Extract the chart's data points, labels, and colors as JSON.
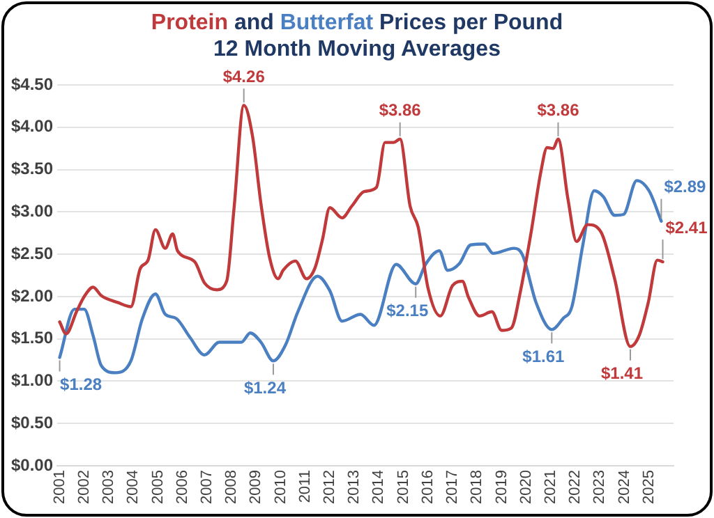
{
  "chart_data": {
    "type": "line",
    "title": "Protein and Butterfat Prices per Pound",
    "subtitle": "12 Month Moving Averages",
    "series": [
      {
        "color": "#c0393b",
        "x": [
          2001.0,
          2001.26,
          2001.7,
          2002.0,
          2002.36,
          2002.7,
          2003.36,
          2003.9,
          2004.28,
          2004.6,
          2004.9,
          2005.3,
          2005.6,
          2005.8,
          2006.5,
          2006.9,
          2007.4,
          2007.8,
          2008.1,
          2008.5,
          2008.85,
          2009.2,
          2009.55,
          2009.9,
          2010.1,
          2010.6,
          2011.05,
          2011.4,
          2011.7,
          2012.0,
          2012.5,
          2012.9,
          2013.4,
          2013.9,
          2014.25,
          2014.6,
          2014.86,
          2015.27,
          2015.6,
          2016.0,
          2016.5,
          2017.0,
          2017.4,
          2017.65,
          2018.1,
          2018.6,
          2019.0,
          2019.4,
          2019.75,
          2020.2,
          2020.6,
          2020.85,
          2021.1,
          2021.3,
          2021.7,
          2022.05,
          2022.5,
          2023.05,
          2023.6,
          2024.24,
          2024.6,
          2024.97,
          2025.34,
          2025.56
        ],
        "values": [
          1.7,
          1.56,
          1.83,
          2.0,
          2.11,
          2.01,
          1.93,
          1.88,
          2.33,
          2.43,
          2.79,
          2.57,
          2.74,
          2.54,
          2.41,
          2.16,
          2.08,
          2.18,
          3.04,
          4.26,
          3.9,
          3.09,
          2.46,
          2.21,
          2.31,
          2.42,
          2.21,
          2.34,
          2.67,
          3.05,
          2.93,
          3.07,
          3.24,
          3.29,
          3.82,
          3.82,
          3.86,
          3.07,
          2.82,
          2.1,
          1.77,
          2.13,
          2.18,
          1.99,
          1.77,
          1.82,
          1.6,
          1.63,
          2.04,
          2.76,
          3.48,
          3.76,
          3.75,
          3.86,
          3.15,
          2.65,
          2.85,
          2.76,
          2.21,
          1.41,
          1.54,
          1.93,
          2.43,
          2.41
        ]
      },
      {
        "color": "#4a7fc1",
        "x": [
          2001.0,
          2001.6,
          2002.0,
          2002.36,
          2002.7,
          2003.27,
          2003.9,
          2004.37,
          2004.9,
          2005.3,
          2005.75,
          2006.3,
          2006.9,
          2007.5,
          2008.4,
          2008.76,
          2009.2,
          2009.7,
          2010.2,
          2010.7,
          2011.5,
          2012.0,
          2012.5,
          2013.25,
          2013.8,
          2014.7,
          2015.5,
          2015.9,
          2016.46,
          2016.8,
          2017.28,
          2017.74,
          2018.3,
          2018.65,
          2019.5,
          2019.85,
          2020.4,
          2021.04,
          2021.5,
          2021.86,
          2022.3,
          2022.77,
          2023.14,
          2023.6,
          2023.96,
          2024.5,
          2025.0,
          2025.5
        ],
        "values": [
          1.28,
          1.85,
          1.85,
          1.54,
          1.18,
          1.1,
          1.24,
          1.74,
          2.03,
          1.79,
          1.74,
          1.52,
          1.31,
          1.46,
          1.46,
          1.57,
          1.46,
          1.24,
          1.43,
          1.82,
          2.24,
          2.07,
          1.71,
          1.79,
          1.66,
          2.38,
          2.15,
          2.38,
          2.54,
          2.31,
          2.39,
          2.61,
          2.62,
          2.51,
          2.57,
          2.49,
          1.93,
          1.61,
          1.74,
          1.88,
          2.6,
          3.25,
          3.18,
          2.96,
          2.97,
          3.37,
          3.25,
          2.89
        ]
      }
    ],
    "xlim": [
      2000.9,
      2026
    ],
    "xticks": [
      2001,
      2002,
      2003,
      2004,
      2005,
      2006,
      2007,
      2008,
      2009,
      2010,
      2011,
      2012,
      2013,
      2014,
      2015,
      2016,
      2017,
      2018,
      2019,
      2020,
      2021,
      2022,
      2023,
      2024,
      2025
    ],
    "ylim": [
      0,
      4.5
    ],
    "yticks": [
      {
        "value": 0,
        "label": "$0.00"
      },
      {
        "value": 0.5,
        "label": "$0.50"
      },
      {
        "value": 1,
        "label": "$1.00"
      },
      {
        "value": 1.5,
        "label": "$1.50"
      },
      {
        "value": 2,
        "label": "$2.00"
      },
      {
        "value": 2.5,
        "label": "$2.50"
      },
      {
        "value": 3,
        "label": "$3.00"
      },
      {
        "value": 3.5,
        "label": "$3.50"
      },
      {
        "value": 4,
        "label": "$4.00"
      },
      {
        "value": 4.5,
        "label": "$4.50"
      }
    ],
    "grid": "y",
    "legend": false,
    "marker": "none",
    "line_style": "solid",
    "annotations": [
      {
        "text": "$4.26",
        "x": 2008.5,
        "y": 4.26
      },
      {
        "text": "$3.86",
        "x": 2014.86,
        "y": 3.86
      },
      {
        "text": "$3.86",
        "x": 2021.3,
        "y": 3.86
      },
      {
        "text": "$1.41",
        "x": 2024.24,
        "y": 1.41
      },
      {
        "text": "$2.41",
        "x": 2025.56,
        "y": 2.41
      },
      {
        "text": "$1.28",
        "x": 2001.0,
        "y": 1.28
      },
      {
        "text": "$1.24",
        "x": 2009.7,
        "y": 1.24
      },
      {
        "text": "$2.15",
        "x": 2015.5,
        "y": 2.15
      },
      {
        "text": "$1.61",
        "x": 2021.04,
        "y": 1.61
      },
      {
        "text": "$2.89",
        "x": 2025.5,
        "y": 2.89
      }
    ]
  }
}
